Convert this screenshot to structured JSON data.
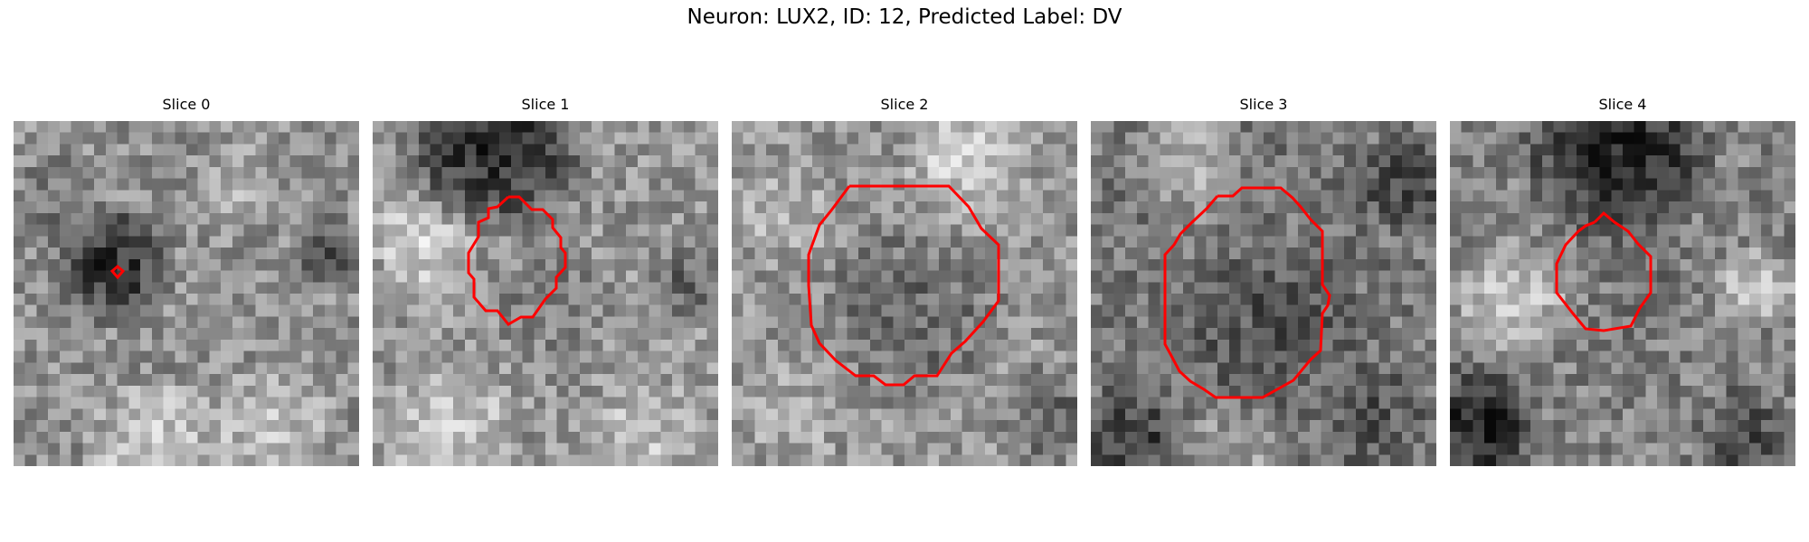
{
  "figure": {
    "title": "Neuron: LUX2, ID: 12, Predicted Label: DV"
  },
  "colors": {
    "contour": "#ff0000",
    "background": "#ffffff"
  },
  "panels": [
    {
      "title": "Slice 0"
    },
    {
      "title": "Slice 1"
    },
    {
      "title": "Slice 2"
    },
    {
      "title": "Slice 3"
    },
    {
      "title": "Slice 4"
    }
  ]
}
